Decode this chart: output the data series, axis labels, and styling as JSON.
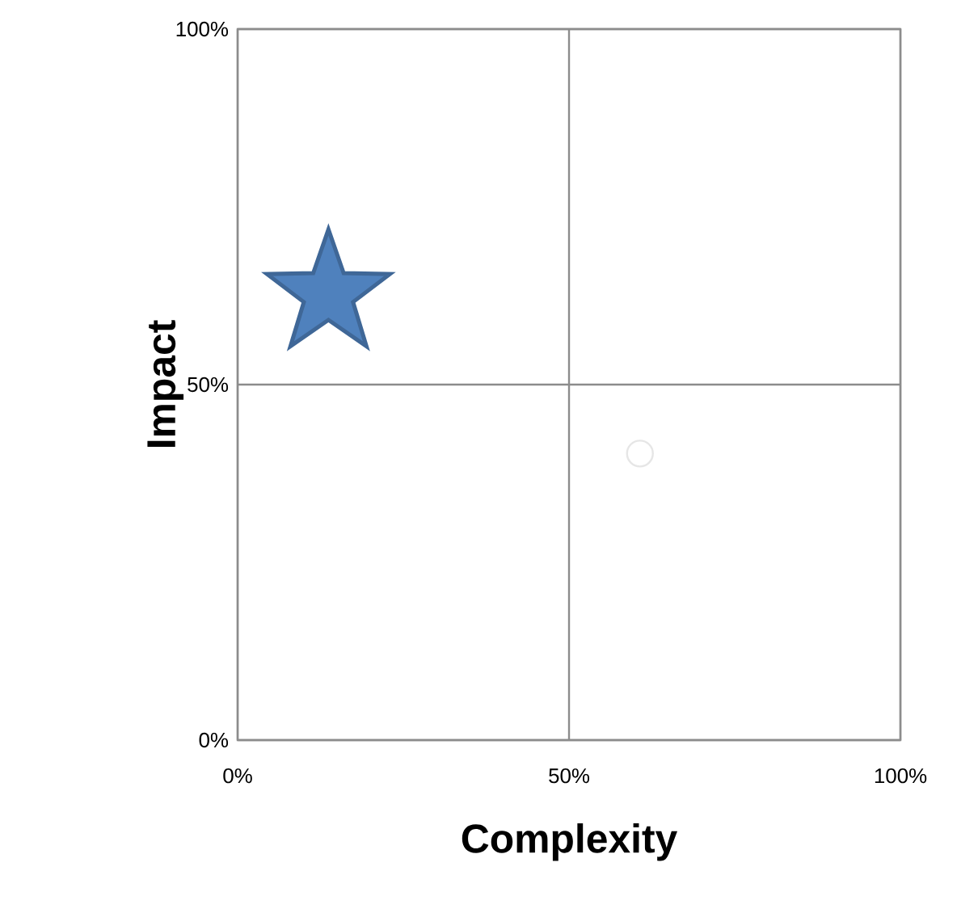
{
  "chart_data": {
    "type": "scatter",
    "xlabel": "Complexity",
    "ylabel": "Impact",
    "xlim": [
      0,
      100
    ],
    "ylim": [
      0,
      100
    ],
    "xticks": [
      {
        "value": 0,
        "label": "0%"
      },
      {
        "value": 50,
        "label": "50%"
      },
      {
        "value": 100,
        "label": "100%"
      }
    ],
    "yticks": [
      {
        "value": 0,
        "label": "0%"
      },
      {
        "value": 50,
        "label": "50%"
      },
      {
        "value": 100,
        "label": "100%"
      }
    ],
    "grid": true,
    "series": [
      {
        "x": [
          13.7
        ],
        "values": [
          63.6
        ],
        "color": "#4f81bd",
        "marker": "star"
      },
      {
        "x": [
          60.7
        ],
        "values": [
          40.3
        ],
        "color": "#e6e6e6",
        "marker": "circle"
      }
    ]
  }
}
